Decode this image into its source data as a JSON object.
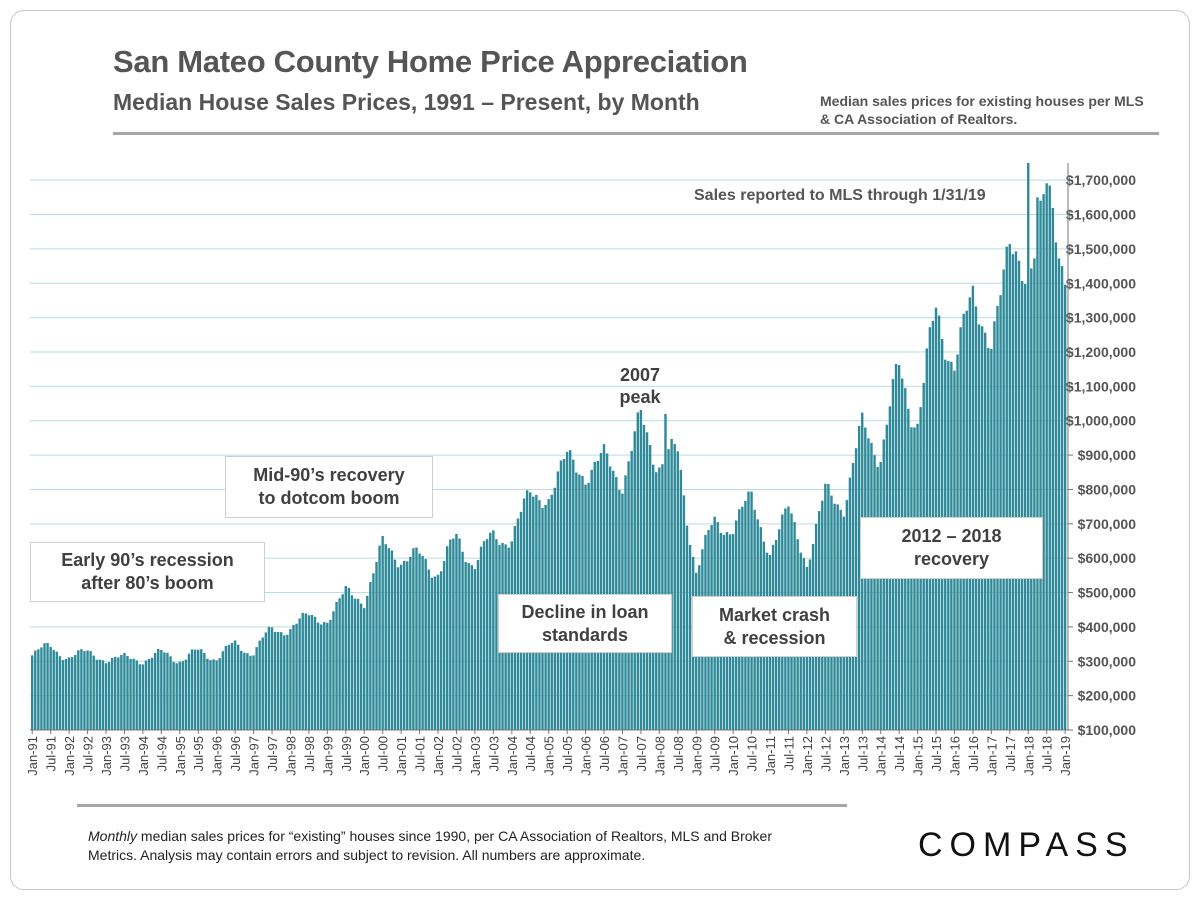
{
  "header": {
    "title": "San Mateo County Home Price Appreciation",
    "subtitle": "Median House Sales Prices, 1991 – Present, by Month",
    "source_note": "Median sales prices for existing houses per MLS & CA Association of Realtors."
  },
  "annotations": {
    "sales_reported": "Sales reported to MLS through 1/31/19",
    "peak_line1": "2007",
    "peak_line2": "peak",
    "early90s_line1": "Early 90’s recession",
    "early90s_line2": "after 80’s boom",
    "mid90s_line1": "Mid-90’s recovery",
    "mid90s_line2": "to dotcom boom",
    "decline_line1": "Decline in loan",
    "decline_line2": "standards",
    "crash_line1": "Market crash",
    "crash_line2": "& recession",
    "recovery_line1": "2012 – 2018",
    "recovery_line2": "recovery"
  },
  "footer": {
    "footnote_italic": "Monthly",
    "footnote_rest": " median sales prices for “existing” houses since 1990, per CA Association of Realtors, MLS and Broker Metrics.  Analysis may contain errors and subject to revision. All numbers are approximate.",
    "logo": "COMPASS"
  },
  "colors": {
    "bar": "#2e8a99",
    "grid": "#b6dde4",
    "text": "#555555"
  },
  "chart_data": {
    "type": "bar",
    "title": "San Mateo County Home Price Appreciation",
    "subtitle": "Median House Sales Prices, 1991 – Present, by Month",
    "ylim": [
      100000,
      1750000
    ],
    "grid": true,
    "y_ticks": [
      100000,
      200000,
      300000,
      400000,
      500000,
      600000,
      700000,
      800000,
      900000,
      1000000,
      1100000,
      1200000,
      1300000,
      1400000,
      1500000,
      1600000,
      1700000
    ],
    "y_tick_labels": [
      "$100,000",
      "$200,000",
      "$300,000",
      "$400,000",
      "$500,000",
      "$600,000",
      "$700,000",
      "$800,000",
      "$900,000",
      "$1,000,000",
      "$1,100,000",
      "$1,200,000",
      "$1,300,000",
      "$1,400,000",
      "$1,500,000",
      "$1,600,000",
      "$1,700,000"
    ],
    "x_tick_labels": [
      "Jan-91",
      "Jul-91",
      "Jan-92",
      "Jul-92",
      "Jan-93",
      "Jul-93",
      "Jan-94",
      "Jul-94",
      "Jan-95",
      "Jul-95",
      "Jan-96",
      "Jul-96",
      "Jan-97",
      "Jul-97",
      "Jan-98",
      "Jul-98",
      "Jan-99",
      "Jul-99",
      "Jan-00",
      "Jul-00",
      "Jan-01",
      "Jul-01",
      "Jan-02",
      "Jul-02",
      "Jan-03",
      "Jul-03",
      "Jan-04",
      "Jul-04",
      "Jan-05",
      "Jul-05",
      "Jan-06",
      "Jul-06",
      "Jan-07",
      "Jul-07",
      "Jan-08",
      "Jul-08",
      "Jan-09",
      "Jul-09",
      "Jan-10",
      "Jul-10",
      "Jan-11",
      "Jul-11",
      "Jan-12",
      "Jul-12",
      "Jan-13",
      "Jul-13",
      "Jan-14",
      "Jul-14",
      "Jan-15",
      "Jul-15",
      "Jan-16",
      "Jul-16",
      "Jan-17",
      "Jul-17",
      "Jan-18",
      "Jul-18",
      "Jan-19"
    ],
    "anchors": [
      [
        "Jan-91",
        330000
      ],
      [
        "Jul-91",
        335000
      ],
      [
        "Jan-92",
        315000
      ],
      [
        "Jul-92",
        325000
      ],
      [
        "Jan-93",
        305000
      ],
      [
        "Jul-93",
        310000
      ],
      [
        "Jan-94",
        305000
      ],
      [
        "Jul-94",
        320000
      ],
      [
        "Jan-95",
        310000
      ],
      [
        "Jul-95",
        320000
      ],
      [
        "Jan-96",
        320000
      ],
      [
        "Jul-96",
        340000
      ],
      [
        "Jan-97",
        335000
      ],
      [
        "Jul-97",
        385000
      ],
      [
        "Jan-98",
        400000
      ],
      [
        "Jul-98",
        430000
      ],
      [
        "Jan-99",
        420000
      ],
      [
        "Jul-99",
        500000
      ],
      [
        "Jan-00",
        480000
      ],
      [
        "Jul-00",
        630000
      ],
      [
        "Jan-01",
        610000
      ],
      [
        "Jul-01",
        590000
      ],
      [
        "Jan-02",
        575000
      ],
      [
        "Jul-02",
        640000
      ],
      [
        "Jan-03",
        600000
      ],
      [
        "Jul-03",
        650000
      ],
      [
        "Jan-04",
        670000
      ],
      [
        "Jul-04",
        780000
      ],
      [
        "Jan-05",
        780000
      ],
      [
        "Jul-05",
        890000
      ],
      [
        "Jan-06",
        850000
      ],
      [
        "Jul-06",
        880000
      ],
      [
        "Jan-07",
        840000
      ],
      [
        "Jul-07",
        980000
      ],
      [
        "Jan-08",
        900000
      ],
      [
        "Jul-08",
        880000
      ],
      [
        "Jan-09",
        580000
      ],
      [
        "Jul-09",
        690000
      ],
      [
        "Jan-10",
        700000
      ],
      [
        "Jul-10",
        770000
      ],
      [
        "Jan-11",
        620000
      ],
      [
        "Jul-11",
        740000
      ],
      [
        "Jan-12",
        590000
      ],
      [
        "Jul-12",
        780000
      ],
      [
        "Jan-13",
        770000
      ],
      [
        "Jul-13",
        960000
      ],
      [
        "Jan-14",
        930000
      ],
      [
        "Jul-14",
        1120000
      ],
      [
        "Jan-15",
        1020000
      ],
      [
        "Jul-15",
        1290000
      ],
      [
        "Jan-16",
        1190000
      ],
      [
        "Jul-16",
        1340000
      ],
      [
        "Jan-17",
        1250000
      ],
      [
        "Jul-17",
        1480000
      ],
      [
        "Jan-18",
        1450000
      ],
      [
        "Jul-18",
        1640000
      ],
      [
        "Jan-19",
        1470000
      ]
    ]
  }
}
